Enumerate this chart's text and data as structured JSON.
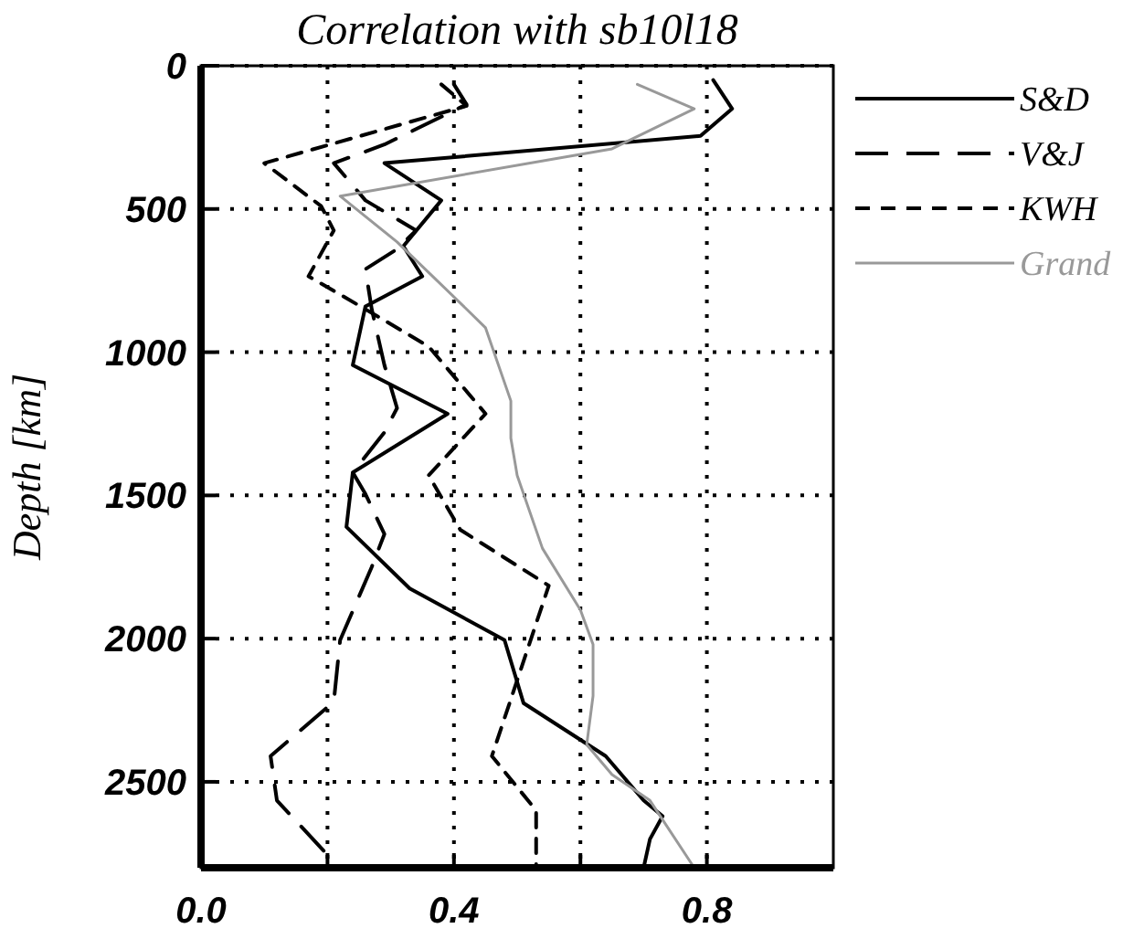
{
  "chart_data": {
    "type": "line",
    "title": "Correlation with sb10l18",
    "ylabel": "Depth [km]",
    "xlim": [
      0,
      1
    ],
    "ylim": [
      2800,
      0
    ],
    "xticks": [
      {
        "value": 0,
        "label": "0.0"
      },
      {
        "value": 0.2,
        "label": null
      },
      0.4,
      {
        "value": 0.6,
        "label": null
      },
      0.8
    ],
    "yticks": [
      0,
      500,
      1000,
      1500,
      2000,
      2500
    ],
    "grid": true,
    "legend": "top right",
    "series": [
      {
        "name": "S&D",
        "color": "#000000",
        "line_style": "solid",
        "x": [
          0.81,
          0.84,
          0.79,
          0.29,
          0.38,
          0.32,
          0.35,
          0.26,
          0.24,
          0.39,
          0.24,
          0.23,
          0.33,
          0.48,
          0.51,
          0.64,
          0.7,
          0.73,
          0.71,
          0.7
        ],
        "values": [
          50,
          150,
          245,
          340,
          470,
          630,
          735,
          840,
          1045,
          1215,
          1420,
          1610,
          1825,
          2005,
          2225,
          2410,
          2565,
          2620,
          2700,
          2800
        ]
      },
      {
        "name": "V&J",
        "color": "#000000",
        "line_style": "longdash",
        "x": [
          0.4,
          0.42,
          0.29,
          0.21,
          0.26,
          0.34,
          0.31,
          0.26,
          0.27,
          0.29,
          0.31,
          0.29,
          0.24,
          0.26,
          0.29,
          0.27,
          0.22,
          0.21,
          0.11,
          0.12,
          0.2,
          0.2
        ],
        "values": [
          65,
          135,
          275,
          340,
          470,
          575,
          640,
          710,
          850,
          1045,
          1195,
          1280,
          1420,
          1495,
          1635,
          1750,
          2005,
          2220,
          2410,
          2565,
          2755,
          2800
        ]
      },
      {
        "name": "KWH",
        "color": "#000000",
        "line_style": "dashed",
        "x": [
          0.38,
          0.42,
          0.1,
          0.19,
          0.21,
          0.17,
          0.26,
          0.36,
          0.45,
          0.36,
          0.41,
          0.55,
          0.46,
          0.53,
          0.53,
          0.53
        ],
        "values": [
          65,
          140,
          340,
          490,
          575,
          735,
          850,
          980,
          1215,
          1430,
          1620,
          1815,
          2410,
          2600,
          2775,
          2800
        ]
      },
      {
        "name": "Grand",
        "color": "#999999",
        "line_style": "solid",
        "x": [
          0.69,
          0.78,
          0.65,
          0.22,
          0.31,
          0.42,
          0.45,
          0.49,
          0.49,
          0.5,
          0.54,
          0.6,
          0.62,
          0.62,
          0.61,
          0.65,
          0.71,
          0.78
        ],
        "values": [
          65,
          150,
          290,
          455,
          615,
          850,
          915,
          1170,
          1300,
          1430,
          1685,
          1900,
          2020,
          2200,
          2370,
          2475,
          2565,
          2800
        ]
      }
    ]
  }
}
